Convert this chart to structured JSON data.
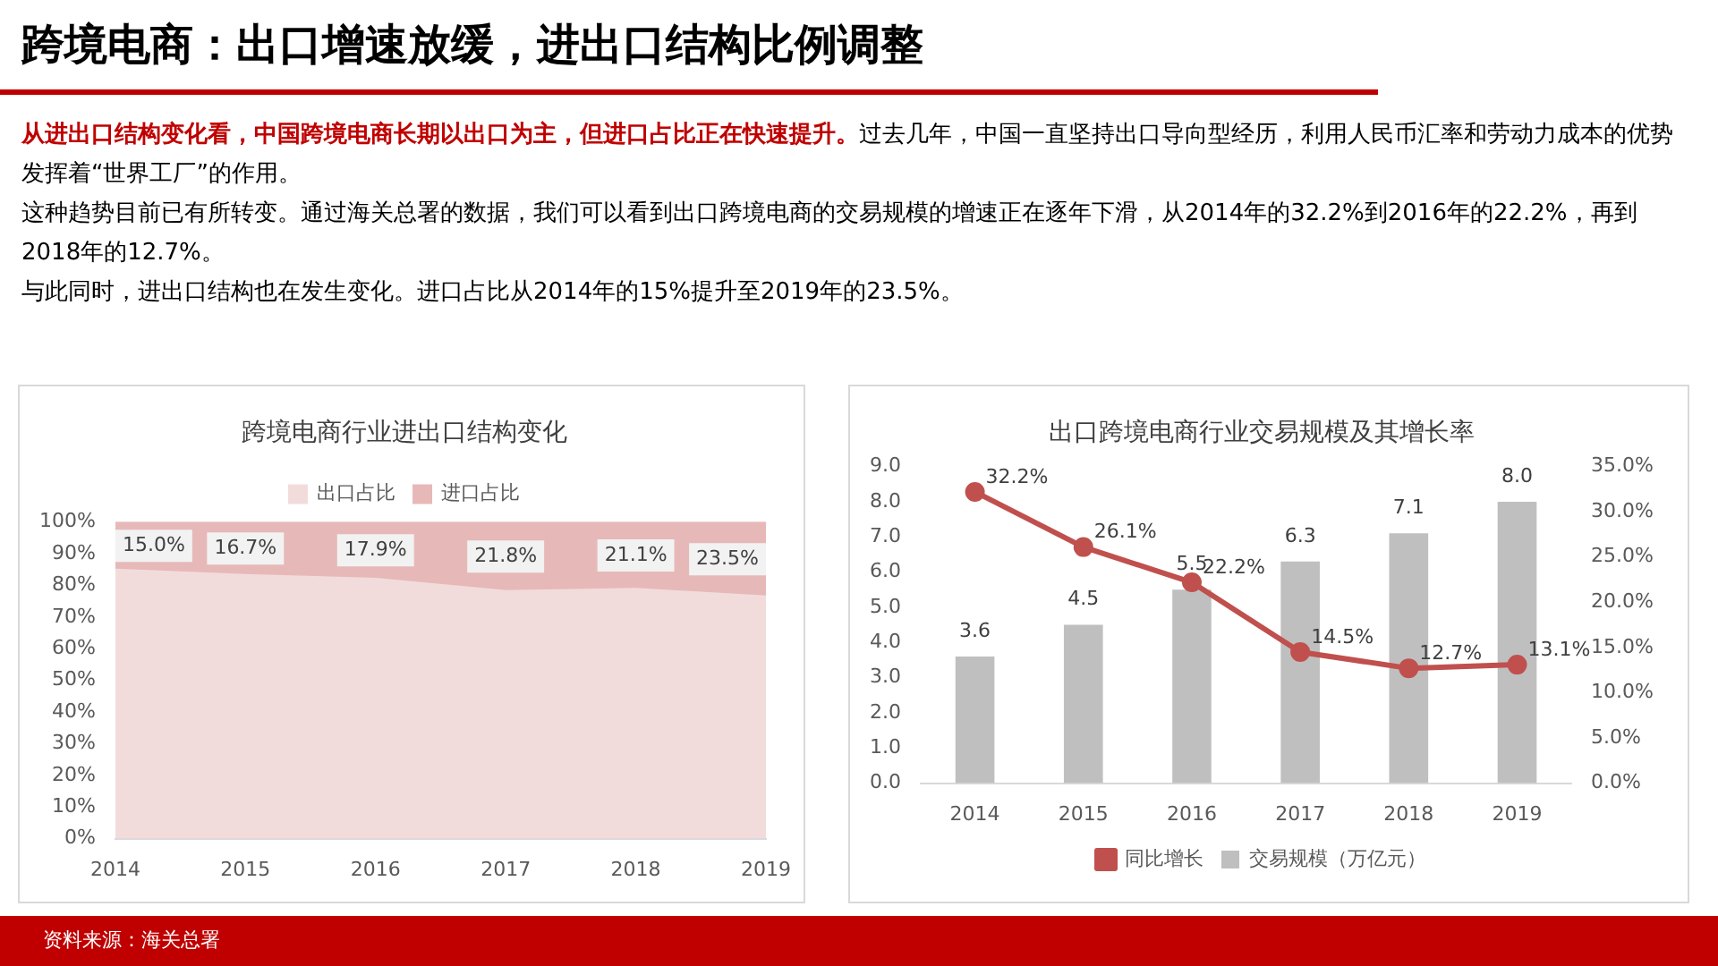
{
  "chart_data": [
    {
      "type": "other",
      "title": "跨境电商：出口增速放缓，进出口结构比例调整",
      "annotations": [
        "从进出口结构变化看，中国跨境电商长期以出口为主，但进口占比正在快速提升。",
        "过去几年，中国一直坚持出口导向型经历，利用人民币汇率和劳动力成本的优势发挥着“世界工厂”的作用。",
        "这种趋势目前已有所转变。通过海关总署的数据，我们可以看到出口跨境电商的交易规模的增速正在逐年下滑，从2014年的32.2%到2016年的22.2%，再到2018年的12.7%。",
        "与此同时，进出口结构也在发生变化。进口占比从2014年的15%提升至2019年的23.5%。",
        "资料来源：海关总署"
      ]
    },
    {
      "type": "area",
      "stacked": true,
      "title": "跨境电商行业进出口结构变化",
      "categories": [
        "2014",
        "2015",
        "2016",
        "2017",
        "2018",
        "2019"
      ],
      "ylim": [
        0,
        100
      ],
      "yticks": [
        {
          "value": 0,
          "label": "0%"
        },
        {
          "value": 10,
          "label": "10%"
        },
        {
          "value": 20,
          "label": "20%"
        },
        {
          "value": 30,
          "label": "30%"
        },
        {
          "value": 40,
          "label": "40%"
        },
        {
          "value": 50,
          "label": "50%"
        },
        {
          "value": 60,
          "label": "60%"
        },
        {
          "value": 70,
          "label": "70%"
        },
        {
          "value": 80,
          "label": "80%"
        },
        {
          "value": 90,
          "label": "90%"
        },
        {
          "value": 100,
          "label": "100%"
        }
      ],
      "legend": "top",
      "series": [
        {
          "name": "出口占比",
          "color": "#f2dcdb",
          "values": [
            85.0,
            83.3,
            82.1,
            78.2,
            78.9,
            76.5
          ]
        },
        {
          "name": "进口占比",
          "color": "#e6b9b8",
          "values": [
            15.0,
            16.7,
            17.9,
            21.8,
            21.1,
            23.5
          ],
          "value_labels": [
            "15.0%",
            "16.7%",
            "17.9%",
            "21.8%",
            "21.1%",
            "23.5%"
          ]
        }
      ]
    },
    {
      "type": "bar",
      "title": "出口跨境电商行业交易规模及其增长率",
      "categories": [
        "2014",
        "2015",
        "2016",
        "2017",
        "2018",
        "2019"
      ],
      "ylim": [
        0,
        9
      ],
      "yticks": [
        {
          "value": 0,
          "label": "0.0"
        },
        {
          "value": 1,
          "label": "1.0"
        },
        {
          "value": 2,
          "label": "2.0"
        },
        {
          "value": 3,
          "label": "3.0"
        },
        {
          "value": 4,
          "label": "4.0"
        },
        {
          "value": 5,
          "label": "5.0"
        },
        {
          "value": 6,
          "label": "6.0"
        },
        {
          "value": 7,
          "label": "7.0"
        },
        {
          "value": 8,
          "label": "8.0"
        },
        {
          "value": 9,
          "label": "9.0"
        }
      ],
      "y2lim": [
        0,
        35
      ],
      "y2ticks": [
        {
          "value": 0,
          "label": "0.0%"
        },
        {
          "value": 5,
          "label": "5.0%"
        },
        {
          "value": 10,
          "label": "10.0%"
        },
        {
          "value": 15,
          "label": "15.0%"
        },
        {
          "value": 20,
          "label": "20.0%"
        },
        {
          "value": 25,
          "label": "25.0%"
        },
        {
          "value": 30,
          "label": "30.0%"
        },
        {
          "value": 35,
          "label": "35.0%"
        }
      ],
      "legend": "bottom",
      "series": [
        {
          "name": "交易规模（万亿元）",
          "color": "#bfbfbf",
          "values": [
            3.6,
            4.5,
            5.5,
            6.3,
            7.1,
            8.0
          ],
          "value_labels": [
            "3.6",
            "4.5",
            "5.5",
            "6.3",
            "7.1",
            "8.0"
          ]
        },
        {
          "name": "同比增长",
          "type": "line",
          "axis": "y2",
          "marker": "circle",
          "color": "#c0504d",
          "values": [
            32.2,
            26.1,
            22.2,
            14.5,
            12.7,
            13.1
          ],
          "value_labels": [
            "32.2%",
            "26.1%",
            "22.2%",
            "14.5%",
            "12.7%",
            "13.1%"
          ]
        }
      ]
    }
  ]
}
